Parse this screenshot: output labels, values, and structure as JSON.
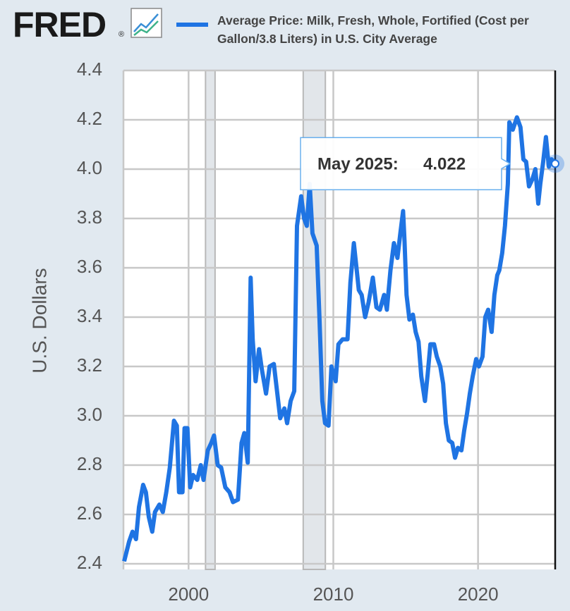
{
  "chart_data": {
    "type": "line",
    "logo": "FRED",
    "logo_mark": "®",
    "y_label": "U.S. Dollars",
    "tooltip_label": "May 2025:",
    "xlim": [
      1995.5,
      2025.33
    ],
    "xticks": [
      2000,
      2010,
      2020
    ],
    "ylim": [
      2.4,
      4.4
    ],
    "yticks": [
      2.4,
      2.6,
      2.8,
      {
        "value": 3,
        "label": "3.0"
      },
      3.2,
      3.4,
      3.6,
      3.8,
      {
        "value": 4,
        "label": "4.0"
      },
      4.2,
      4.4
    ],
    "grid": true,
    "recessions": [
      [
        2001.17,
        2001.83
      ],
      [
        2007.92,
        2009.45
      ]
    ],
    "x": [
      1995.55,
      1995.89,
      1996.13,
      1996.37,
      1996.57,
      1996.86,
      1997.05,
      1997.25,
      1997.49,
      1997.68,
      1997.98,
      1998.22,
      1998.46,
      1998.7,
      1998.99,
      1999.19,
      1999.34,
      1999.58,
      1999.72,
      1999.92,
      2000.11,
      2000.31,
      2000.6,
      2000.84,
      2001.03,
      2001.33,
      2001.57,
      2001.76,
      2002.01,
      2002.25,
      2002.54,
      2002.83,
      2003.07,
      2003.41,
      2003.66,
      2003.85,
      2004.09,
      2004.29,
      2004.43,
      2004.63,
      2004.87,
      2005.06,
      2005.35,
      2005.6,
      2005.89,
      2006.13,
      2006.33,
      2006.62,
      2006.81,
      2007.05,
      2007.3,
      2007.49,
      2007.78,
      2007.98,
      2008.17,
      2008.37,
      2008.56,
      2008.85,
      2009.04,
      2009.24,
      2009.43,
      2009.67,
      2009.87,
      2010.16,
      2010.35,
      2010.64,
      2010.98,
      2011.18,
      2011.42,
      2011.62,
      2011.76,
      2011.96,
      2012.2,
      2012.44,
      2012.73,
      2012.98,
      2013.22,
      2013.51,
      2013.7,
      2013.95,
      2014.19,
      2014.43,
      2014.63,
      2014.82,
      2014.92,
      2015.06,
      2015.26,
      2015.5,
      2015.69,
      2015.89,
      2016.08,
      2016.33,
      2016.52,
      2016.71,
      2016.96,
      2017.15,
      2017.39,
      2017.59,
      2017.78,
      2017.98,
      2018.22,
      2018.41,
      2018.61,
      2018.85,
      2019.04,
      2019.24,
      2019.43,
      2019.63,
      2019.87,
      2020.06,
      2020.31,
      2020.5,
      2020.7,
      2020.94,
      2021.13,
      2021.33,
      2021.47,
      2021.67,
      2021.86,
      2022.06,
      2022.16,
      2022.4,
      2022.69,
      2022.93,
      2023.13,
      2023.32,
      2023.52,
      2023.76,
      2023.96,
      2024.16,
      2024.3,
      2024.5,
      2024.69,
      2024.89,
      2025.08,
      2025.33
    ],
    "series": [
      {
        "name": "Average Price: Milk, Fresh, Whole, Fortified (Cost per Gallon/3.8 Liters) in U.S. City Average",
        "color": "#1f74e3",
        "values": [
          2.41,
          2.49,
          2.53,
          2.5,
          2.63,
          2.72,
          2.69,
          2.59,
          2.53,
          2.61,
          2.64,
          2.61,
          2.69,
          2.79,
          2.98,
          2.96,
          2.69,
          2.69,
          2.95,
          2.95,
          2.71,
          2.76,
          2.74,
          2.8,
          2.74,
          2.86,
          2.89,
          2.92,
          2.8,
          2.79,
          2.71,
          2.69,
          2.65,
          2.66,
          2.89,
          2.93,
          2.81,
          3.56,
          3.31,
          3.14,
          3.27,
          3.19,
          3.09,
          3.2,
          3.21,
          3.09,
          2.99,
          3.03,
          2.97,
          3.06,
          3.1,
          3.77,
          3.89,
          3.8,
          3.77,
          3.94,
          3.74,
          3.69,
          3.4,
          3.06,
          2.97,
          2.96,
          3.2,
          3.14,
          3.29,
          3.31,
          3.31,
          3.54,
          3.7,
          3.59,
          3.51,
          3.49,
          3.4,
          3.46,
          3.56,
          3.44,
          3.43,
          3.49,
          3.43,
          3.59,
          3.7,
          3.64,
          3.74,
          3.83,
          3.71,
          3.49,
          3.39,
          3.41,
          3.34,
          3.3,
          3.16,
          3.06,
          3.17,
          3.29,
          3.29,
          3.24,
          3.2,
          3.13,
          2.97,
          2.9,
          2.89,
          2.83,
          2.87,
          2.86,
          2.94,
          3.01,
          3.09,
          3.16,
          3.23,
          3.2,
          3.24,
          3.4,
          3.43,
          3.34,
          3.49,
          3.57,
          3.59,
          3.66,
          3.77,
          3.94,
          4.19,
          4.16,
          4.21,
          4.17,
          4.04,
          4.03,
          3.93,
          3.96,
          4.0,
          3.86,
          3.94,
          4.03,
          4.13,
          4.01,
          4.04,
          4.022
        ]
      }
    ]
  }
}
